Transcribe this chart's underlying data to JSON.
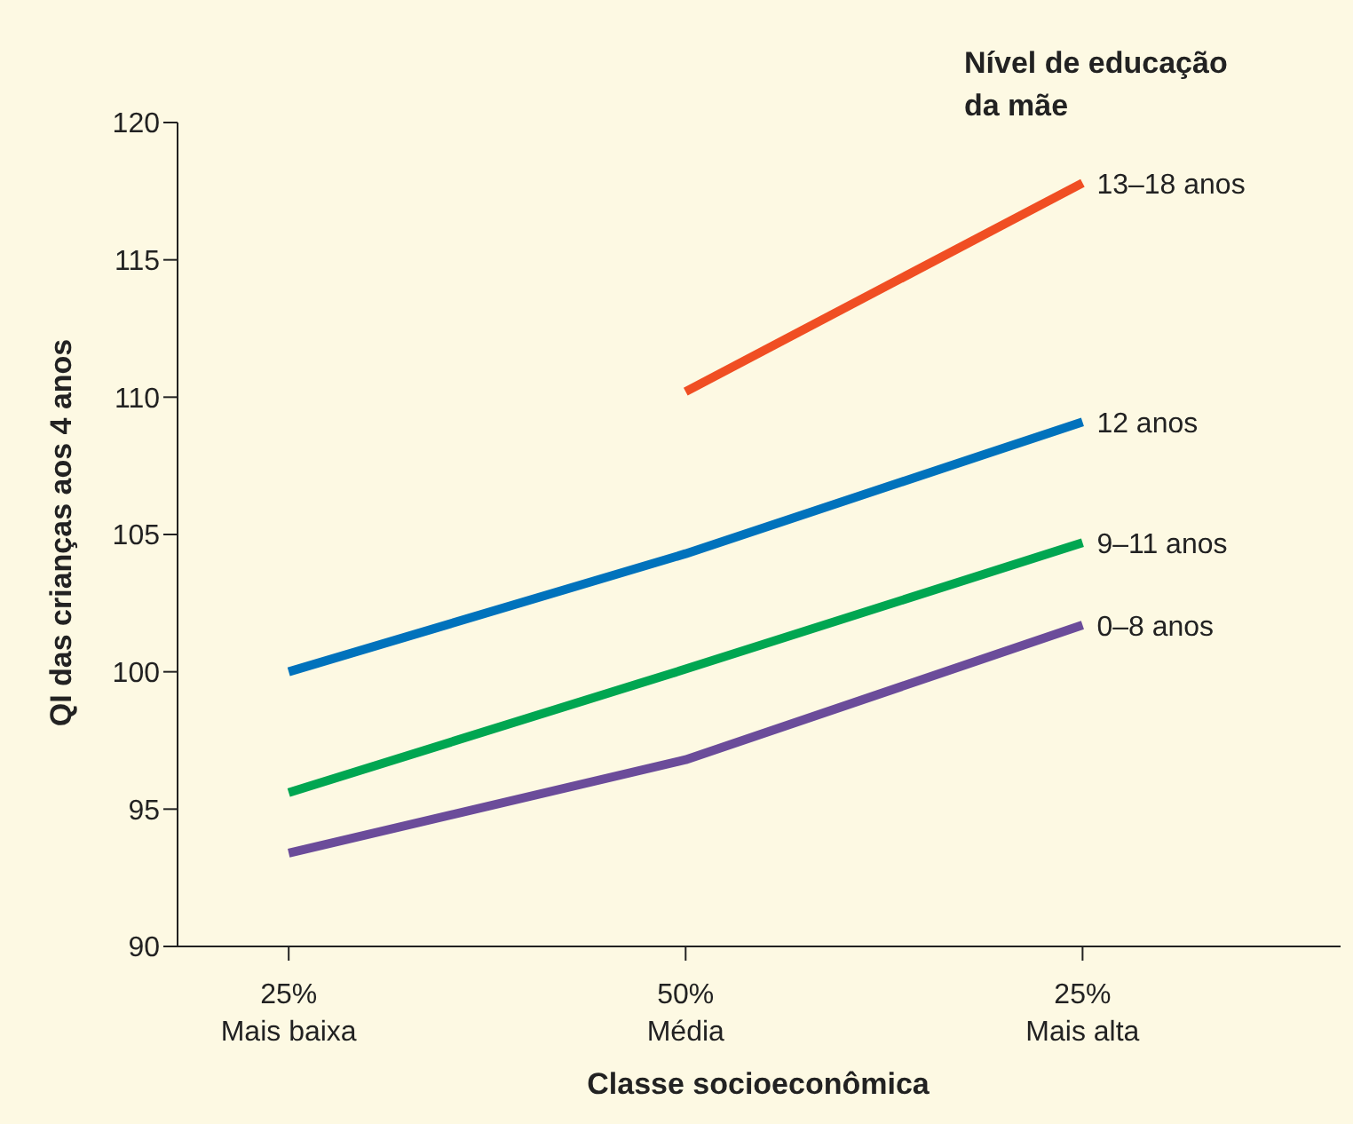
{
  "chart_data": {
    "type": "line",
    "xlabel": "Classe socioeconômica",
    "ylabel": "QI das crianças aos 4 anos",
    "legend_title": "Nível de educação da mãe",
    "categories": [
      "25%\nMais baixa",
      "50%\nMédia",
      "25%\nMais alta"
    ],
    "ylim": [
      90,
      120
    ],
    "yticks": [
      90,
      95,
      100,
      105,
      110,
      115,
      120
    ],
    "grid": false,
    "marker": "none",
    "series": [
      {
        "name": "13–18 anos",
        "color": "#f04e23",
        "values": [
          null,
          110.2,
          117.8
        ]
      },
      {
        "name": "12 anos",
        "color": "#0072bc",
        "values": [
          100.0,
          104.3,
          109.1
        ]
      },
      {
        "name": "9–11 anos",
        "color": "#00a651",
        "values": [
          95.6,
          100.1,
          104.7
        ]
      },
      {
        "name": "0–8 anos",
        "color": "#6b4c9a",
        "values": [
          93.4,
          96.8,
          101.7
        ]
      }
    ]
  }
}
